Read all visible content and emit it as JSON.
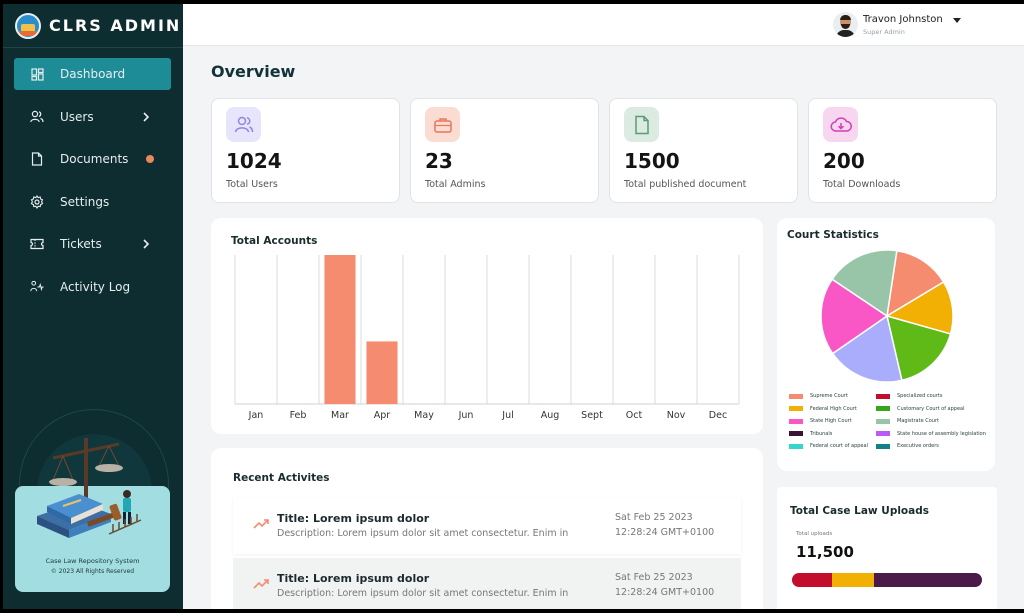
{
  "brand": {
    "name": "CLRS ADMIN"
  },
  "sidebar": {
    "items": [
      {
        "label": "Dashboard",
        "icon": "dashboard-icon",
        "active": true
      },
      {
        "label": "Users",
        "icon": "users-icon",
        "has_children": true
      },
      {
        "label": "Documents",
        "icon": "document-icon",
        "has_badge": true
      },
      {
        "label": "Settings",
        "icon": "gear-icon"
      },
      {
        "label": "Tickets",
        "icon": "ticket-icon",
        "has_children": true
      },
      {
        "label": "Activity Log",
        "icon": "activity-icon"
      }
    ],
    "footer": {
      "title": "Case Law Repository System",
      "copyright": "© 2023 All Rights Reserved"
    }
  },
  "header": {
    "user_name": "Travon Johnston",
    "user_role": "Super Admin"
  },
  "page": {
    "title": "Overview"
  },
  "stats": [
    {
      "value": "1024",
      "label": "Total Users",
      "icon": "users-icon",
      "bg": "#e7e5fb",
      "color": "#8e86e0"
    },
    {
      "value": "23",
      "label": "Total Admins",
      "icon": "briefcase-icon",
      "bg": "#fbdcd2",
      "color": "#e7785a"
    },
    {
      "value": "1500",
      "label": "Total published document",
      "icon": "document-icon",
      "bg": "#dcebe1",
      "color": "#5d9a76"
    },
    {
      "value": "200",
      "label": "Total Downloads",
      "icon": "cloud-download-icon",
      "bg": "#f7d7f0",
      "color": "#d23db4"
    }
  ],
  "accounts_chart": {
    "title": "Total Accounts",
    "chart_data": {
      "type": "bar",
      "categories": [
        "Jan",
        "Feb",
        "Mar",
        "Apr",
        "May",
        "Jun",
        "Jul",
        "Aug",
        "Sept",
        "Oct",
        "Nov",
        "Dec"
      ],
      "values": [
        0,
        0,
        100,
        42,
        0,
        0,
        0,
        0,
        0,
        0,
        0,
        0
      ],
      "ylim": [
        0,
        100
      ],
      "grid": true,
      "bar_color": "#f58c6f"
    }
  },
  "court_statistics": {
    "title": "Court Statistics",
    "chart_data": {
      "type": "pie",
      "slices": [
        {
          "name": "Supreme Court",
          "value": 14,
          "color": "#f58c6f"
        },
        {
          "name": "Federal High Court",
          "value": 13,
          "color": "#f2b005"
        },
        {
          "name": "Customary Court of appeal",
          "value": 17,
          "color": "#5fba18"
        },
        {
          "name": "State High Court",
          "value": 19,
          "color": "#aaadfb"
        },
        {
          "name": "Specialized courts",
          "value": 19,
          "color": "#f957c5"
        },
        {
          "name": "Magistrate Court",
          "value": 18,
          "color": "#98c4a7"
        }
      ],
      "legend": [
        {
          "name": "Supreme Court",
          "color": "#f58c6f"
        },
        {
          "name": "Specialized courts",
          "color": "#c20d2c"
        },
        {
          "name": "Federal High Court",
          "color": "#f2b005"
        },
        {
          "name": "Customary Court of appeal",
          "color": "#38a61b"
        },
        {
          "name": "State High Court",
          "color": "#f957c5"
        },
        {
          "name": "Magistrate Court",
          "color": "#98c4a7"
        },
        {
          "name": "Tribunals",
          "color": "#3a1432"
        },
        {
          "name": "State house of assembly legislation",
          "color": "#b85cf5"
        },
        {
          "name": "Federal court of appeal",
          "color": "#34d6d2"
        },
        {
          "name": "Executive orders",
          "color": "#137f86"
        }
      ],
      "legend_placement": "bottom"
    }
  },
  "recent_activities": {
    "title": "Recent Activites",
    "items": [
      {
        "title": "Title: Lorem ipsum dolor",
        "description": "Description: Lorem ipsum dolor sit amet consectetur. Enim in",
        "date": "Sat Feb 25 2023",
        "time": "12:28:24 GMT+0100"
      },
      {
        "title": "Title: Lorem ipsum dolor",
        "description": "Description: Lorem ipsum dolor sit amet consectetur. Enim in",
        "date": "Sat Feb 25 2023",
        "time": "12:28:24 GMT+0100"
      }
    ]
  },
  "case_uploads": {
    "title": "Total Case Law Uploads",
    "sub_label": "Total uploads",
    "value": "11,500",
    "segments": [
      {
        "fraction": 0.21,
        "color": "#c20d2c"
      },
      {
        "fraction": 0.22,
        "color": "#f2b005"
      },
      {
        "fraction": 0.57,
        "color": "#4b1a48"
      }
    ]
  }
}
